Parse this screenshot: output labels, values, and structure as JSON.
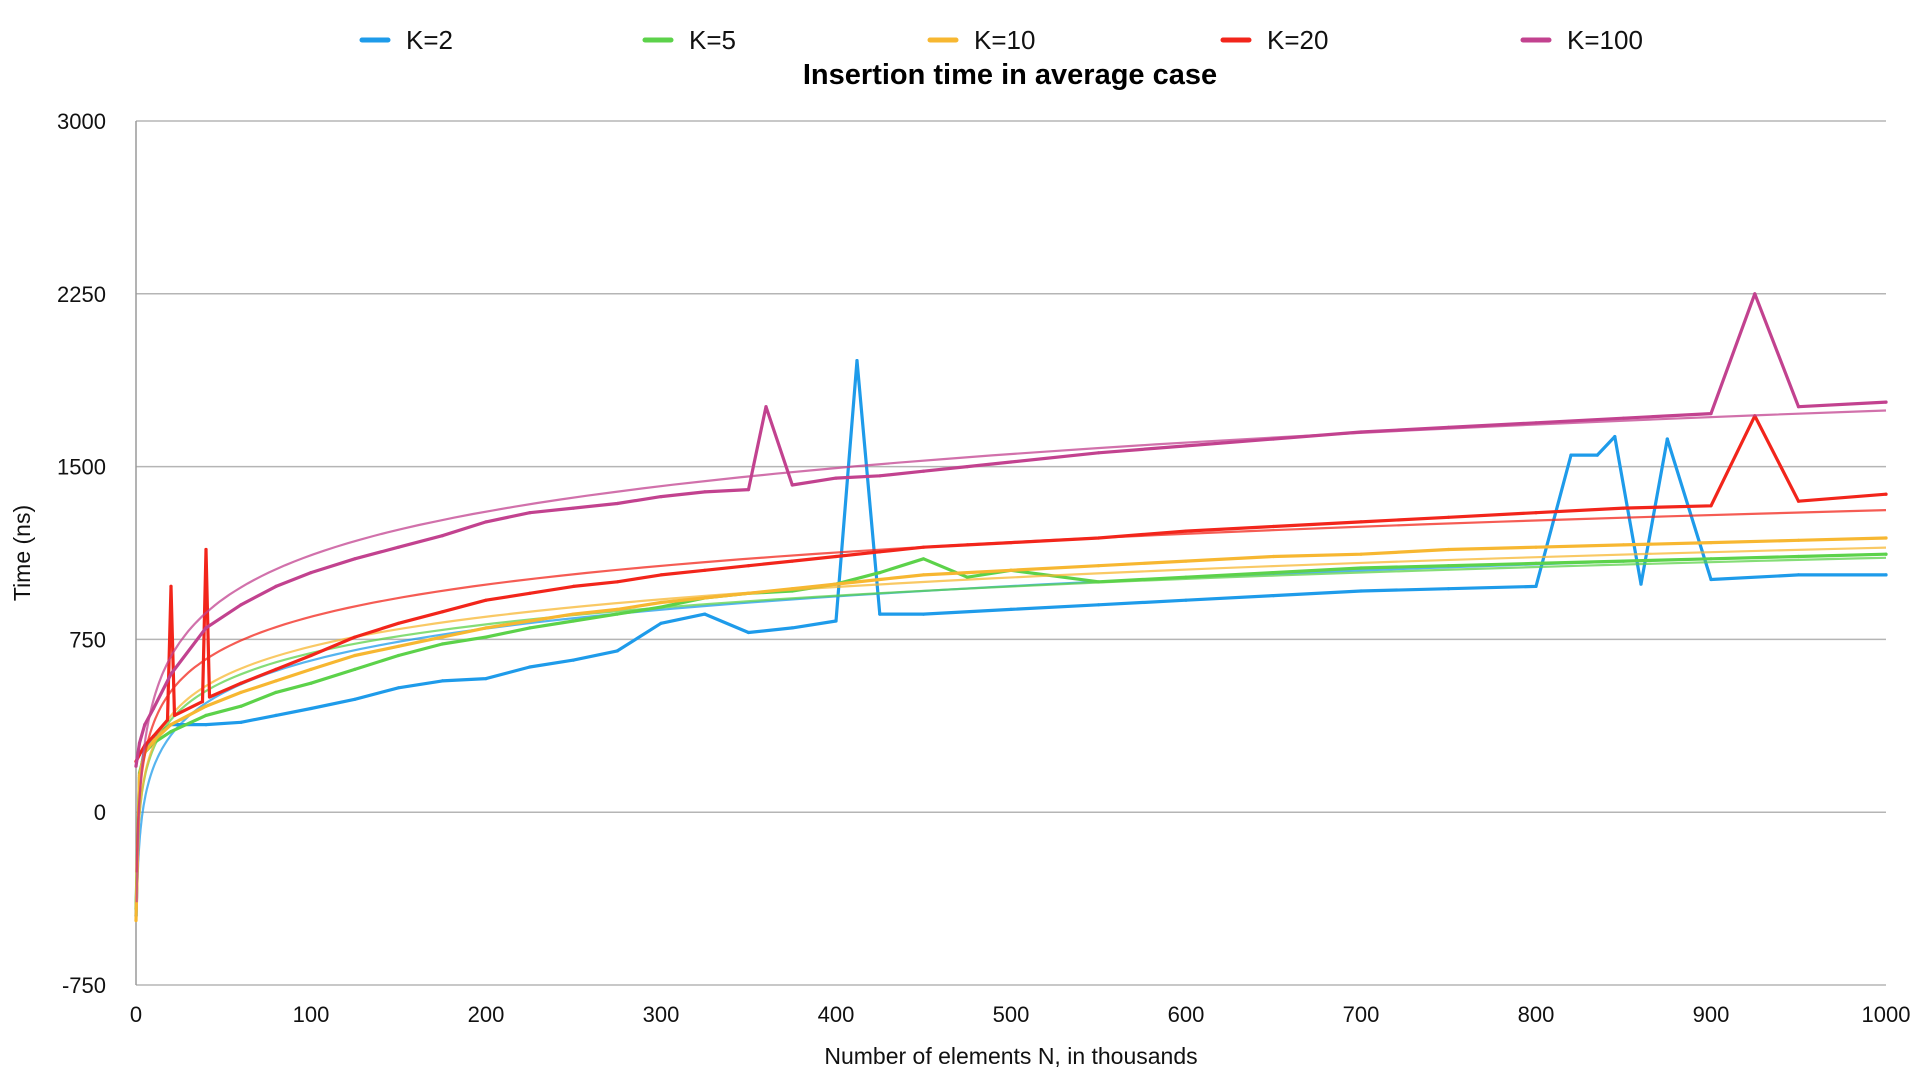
{
  "chart_data": {
    "type": "line",
    "title": "Insertion time in average case",
    "xlabel": "Number of elements N, in thousands",
    "ylabel": "Time (ns)",
    "xlim": [
      0,
      1000
    ],
    "ylim": [
      -750,
      3000
    ],
    "x_ticks": [
      "0",
      "100",
      "200",
      "300",
      "400",
      "500",
      "600",
      "700",
      "800",
      "900",
      "1000"
    ],
    "y_ticks": [
      "-750",
      "0",
      "750",
      "1500",
      "2250",
      "3000"
    ],
    "grid": "horizontal",
    "legend_position": "top",
    "trendlines": "logarithmic",
    "series": [
      {
        "name": "K=2",
        "color": "#1E9BEA",
        "x": [
          0,
          2,
          5,
          10,
          20,
          40,
          60,
          80,
          100,
          125,
          150,
          175,
          200,
          225,
          250,
          275,
          300,
          325,
          350,
          375,
          400,
          412,
          425,
          450,
          500,
          550,
          600,
          650,
          700,
          750,
          800,
          820,
          835,
          845,
          860,
          875,
          900,
          950,
          1000
        ],
        "values": [
          -450,
          150,
          280,
          330,
          380,
          380,
          390,
          420,
          450,
          490,
          540,
          570,
          580,
          630,
          660,
          700,
          820,
          860,
          780,
          800,
          830,
          1960,
          860,
          860,
          880,
          900,
          920,
          940,
          960,
          970,
          980,
          1550,
          1550,
          1630,
          990,
          1620,
          1010,
          1030,
          1030
        ]
      },
      {
        "name": "K=5",
        "color": "#5CD24A",
        "x": [
          0,
          2,
          5,
          10,
          20,
          40,
          60,
          80,
          100,
          125,
          150,
          175,
          200,
          225,
          250,
          275,
          300,
          325,
          350,
          375,
          400,
          425,
          450,
          475,
          500,
          550,
          600,
          650,
          700,
          750,
          800,
          850,
          900,
          950,
          1000
        ],
        "values": [
          -420,
          170,
          260,
          300,
          350,
          420,
          460,
          520,
          560,
          620,
          680,
          730,
          760,
          800,
          830,
          860,
          890,
          930,
          950,
          960,
          990,
          1040,
          1100,
          1020,
          1050,
          1000,
          1020,
          1040,
          1060,
          1070,
          1080,
          1090,
          1100,
          1110,
          1120
        ]
      },
      {
        "name": "K=10",
        "color": "#F7B731",
        "x": [
          0,
          2,
          5,
          10,
          20,
          40,
          60,
          80,
          100,
          125,
          150,
          175,
          200,
          225,
          250,
          275,
          300,
          325,
          350,
          375,
          400,
          425,
          450,
          475,
          500,
          550,
          600,
          650,
          700,
          750,
          800,
          850,
          900,
          950,
          1000
        ],
        "values": [
          -470,
          160,
          260,
          310,
          380,
          460,
          520,
          570,
          620,
          680,
          720,
          760,
          800,
          830,
          860,
          880,
          910,
          930,
          950,
          970,
          990,
          1010,
          1030,
          1040,
          1050,
          1070,
          1090,
          1110,
          1120,
          1140,
          1150,
          1160,
          1170,
          1180,
          1190
        ]
      },
      {
        "name": "K=20",
        "color": "#F2251B",
        "x": [
          0,
          2,
          5,
          10,
          18,
          20,
          22,
          38,
          40,
          42,
          60,
          80,
          100,
          125,
          150,
          175,
          200,
          225,
          250,
          275,
          300,
          325,
          350,
          375,
          400,
          425,
          450,
          475,
          500,
          550,
          600,
          650,
          700,
          750,
          800,
          850,
          900,
          925,
          950,
          1000
        ],
        "values": [
          220,
          250,
          290,
          330,
          400,
          980,
          420,
          480,
          1140,
          500,
          560,
          620,
          680,
          760,
          820,
          870,
          920,
          950,
          980,
          1000,
          1030,
          1050,
          1070,
          1090,
          1110,
          1130,
          1150,
          1160,
          1170,
          1190,
          1220,
          1240,
          1260,
          1280,
          1300,
          1320,
          1330,
          1720,
          1350,
          1380
        ]
      },
      {
        "name": "K=100",
        "color": "#C2428F",
        "x": [
          0,
          2,
          5,
          10,
          20,
          40,
          60,
          80,
          100,
          125,
          150,
          175,
          200,
          225,
          250,
          275,
          300,
          325,
          350,
          360,
          375,
          400,
          425,
          450,
          475,
          500,
          550,
          600,
          650,
          700,
          750,
          800,
          850,
          900,
          925,
          950,
          1000
        ],
        "values": [
          200,
          300,
          380,
          450,
          600,
          800,
          900,
          980,
          1040,
          1100,
          1150,
          1200,
          1260,
          1300,
          1320,
          1340,
          1370,
          1390,
          1400,
          1760,
          1420,
          1450,
          1460,
          1480,
          1500,
          1520,
          1560,
          1590,
          1620,
          1650,
          1670,
          1690,
          1710,
          1730,
          2250,
          1760,
          1780
        ]
      }
    ]
  }
}
